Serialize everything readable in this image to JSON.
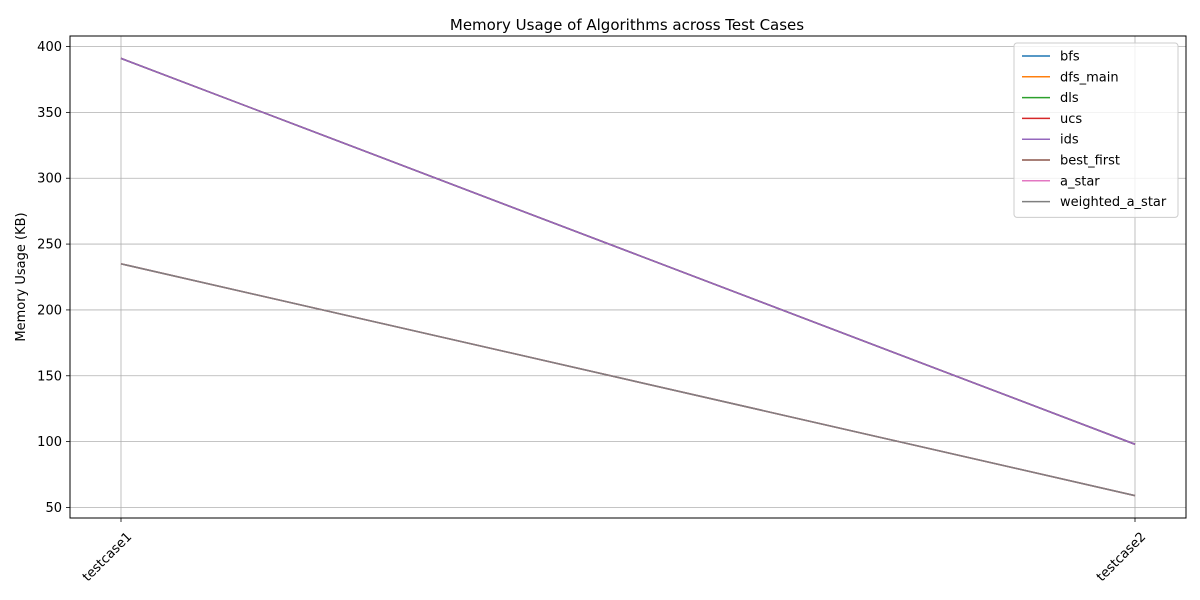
{
  "chart_data": {
    "type": "line",
    "title": "Memory Usage of Algorithms across Test Cases",
    "xlabel": "",
    "ylabel": "Memory Usage (KB)",
    "categories": [
      "testcase1",
      "testcase2"
    ],
    "yticks": [
      50,
      100,
      150,
      200,
      250,
      300,
      350,
      400
    ],
    "ylim": [
      42,
      408
    ],
    "grid": true,
    "legend_position": "top-right",
    "series": [
      {
        "name": "bfs",
        "color": "#1f77b4",
        "values": [
          391,
          98
        ]
      },
      {
        "name": "dfs_main",
        "color": "#ff7f0e",
        "values": [
          235,
          59
        ]
      },
      {
        "name": "dls",
        "color": "#2ca02c",
        "values": [
          391,
          98
        ]
      },
      {
        "name": "ucs",
        "color": "#d62728",
        "values": [
          391,
          98
        ]
      },
      {
        "name": "ids",
        "color": "#9467bd",
        "values": [
          391,
          98
        ]
      },
      {
        "name": "best_first",
        "color": "#8c564b",
        "values": [
          235,
          59
        ]
      },
      {
        "name": "a_star",
        "color": "#e377c2",
        "values": [
          235,
          59
        ]
      },
      {
        "name": "weighted_a_star",
        "color": "#7f7f7f",
        "values": [
          235,
          59
        ]
      }
    ]
  }
}
